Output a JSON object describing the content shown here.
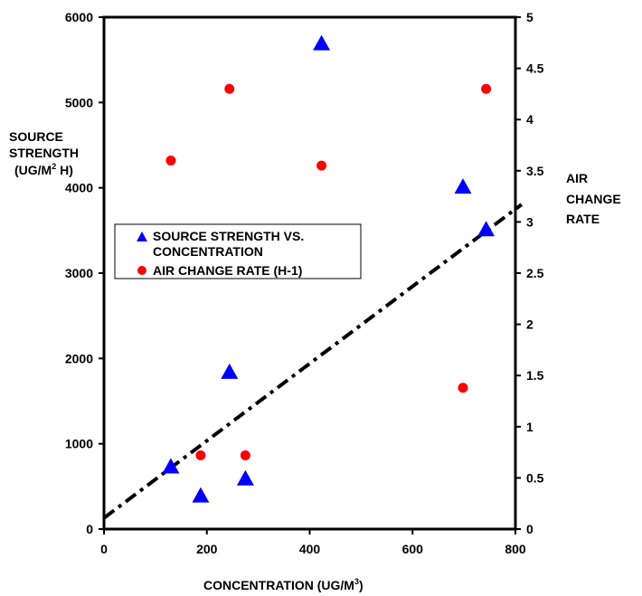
{
  "chart_data": {
    "type": "scatter",
    "x_axis": {
      "range": [
        0,
        800
      ],
      "ticks": [
        "0",
        "200",
        "400",
        "600",
        "800"
      ],
      "label": "CONCENTRATION (UG/M",
      "label_sup": "3",
      "label_end": ")"
    },
    "y_left": {
      "range": [
        0,
        6000
      ],
      "ticks": [
        "0",
        "1000",
        "2000",
        "3000",
        "4000",
        "5000",
        "6000"
      ],
      "label_lines": [
        "SOURCE",
        "STRENGTH"
      ],
      "label_line3": "(UG/M",
      "label_line3_sup": "2",
      "label_line3_end": " H)"
    },
    "y_right": {
      "range": [
        0,
        5
      ],
      "ticks": [
        "0",
        "0.5",
        "1",
        "1.5",
        "2",
        "2.5",
        "3",
        "3.5",
        "4",
        "4.5",
        "5"
      ],
      "label_lines": [
        "AIR",
        "CHANGE",
        "RATE"
      ]
    },
    "series": [
      {
        "name_lines": [
          "SOURCE STRENGTH VS.",
          "CONCENTRATION"
        ],
        "marker": "triangle",
        "color": "#0000ff",
        "axis": "left",
        "points": [
          {
            "x": 130,
            "y": 720
          },
          {
            "x": 188,
            "y": 380
          },
          {
            "x": 244,
            "y": 1830
          },
          {
            "x": 275,
            "y": 580
          },
          {
            "x": 423,
            "y": 5680
          },
          {
            "x": 698,
            "y": 4000
          },
          {
            "x": 743,
            "y": 3500
          }
        ]
      },
      {
        "name": "AIR CHANGE RATE (H-1)",
        "marker": "circle",
        "color": "#ff0000",
        "axis": "right",
        "points": [
          {
            "x": 130,
            "y": 3.6
          },
          {
            "x": 188,
            "y": 0.72
          },
          {
            "x": 244,
            "y": 4.3
          },
          {
            "x": 275,
            "y": 0.72
          },
          {
            "x": 423,
            "y": 3.55
          },
          {
            "x": 698,
            "y": 1.38
          },
          {
            "x": 743,
            "y": 4.3
          }
        ]
      }
    ],
    "trendline": {
      "style": "dash-dot",
      "color": "#000000",
      "axis": "left",
      "x": [
        0,
        800
      ],
      "y": [
        130,
        3750
      ]
    },
    "legend_position": "center-left",
    "grid": false
  }
}
